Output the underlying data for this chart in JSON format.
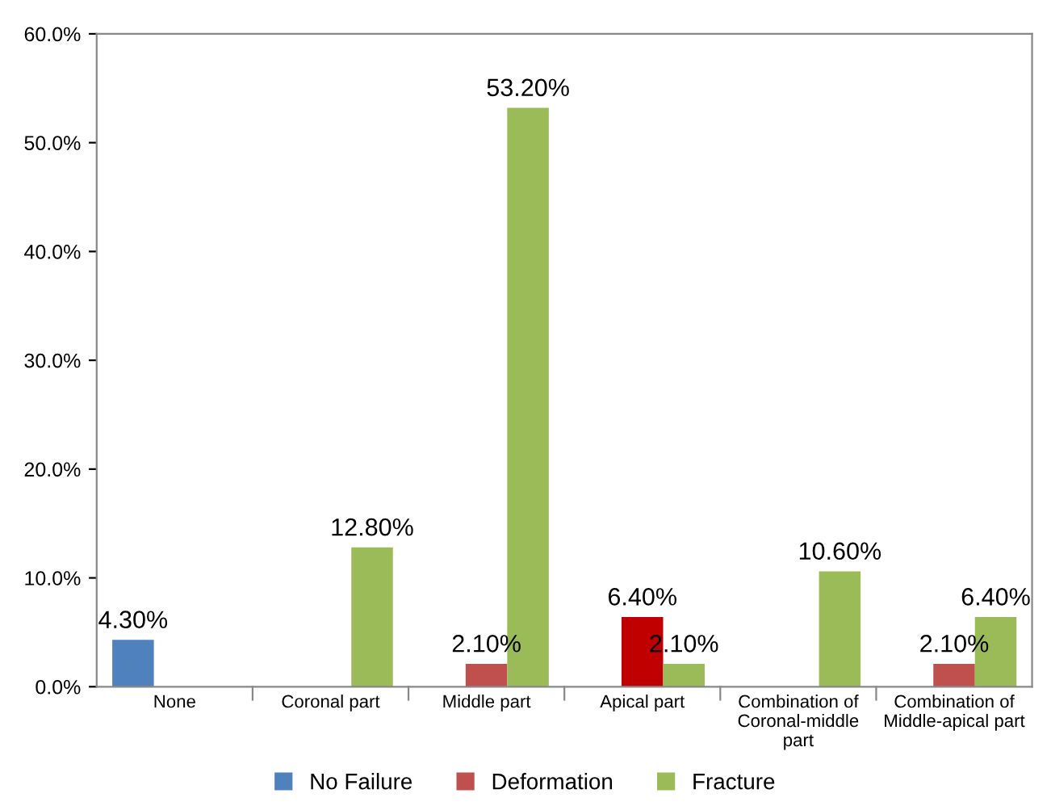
{
  "chart_data": {
    "type": "bar",
    "categories": [
      "None",
      "Coronal part",
      "Middle part",
      "Apical part",
      "Combination of\nCoronal-middle\npart",
      "Combination of\nMiddle-apical part"
    ],
    "series": [
      {
        "name": "No Failure",
        "color": "#4f81bd",
        "values": [
          4.3,
          0,
          0,
          0,
          0,
          0
        ],
        "value_labels": [
          "4.30%",
          null,
          null,
          null,
          null,
          null
        ]
      },
      {
        "name": "Deformation",
        "color": "#c0504d",
        "colors": [
          "#c0504d",
          "#c0504d",
          "#c0504d",
          "#c00000",
          "#c0504d",
          "#c0504d"
        ],
        "values": [
          0,
          0,
          2.1,
          6.4,
          0,
          2.1
        ],
        "value_labels": [
          null,
          null,
          "2.10%",
          "6.40%",
          null,
          "2.10%"
        ]
      },
      {
        "name": "Fracture",
        "color": "#9bbb59",
        "values": [
          0,
          12.8,
          53.2,
          2.1,
          10.6,
          6.4
        ],
        "value_labels": [
          null,
          "12.80%",
          "53.20%",
          "2.10%",
          "10.60%",
          "6.40%"
        ]
      }
    ],
    "ylim": [
      0,
      60
    ],
    "yticks": [
      {
        "value": 0,
        "label": "0.0%"
      },
      {
        "value": 10,
        "label": "10.0%"
      },
      {
        "value": 20,
        "label": "20.0%"
      },
      {
        "value": 30,
        "label": "30.0%"
      },
      {
        "value": 40,
        "label": "40.0%"
      },
      {
        "value": 50,
        "label": "50.0%"
      },
      {
        "value": 60,
        "label": "60.0%"
      }
    ],
    "grid": false,
    "legend": "bottom"
  }
}
